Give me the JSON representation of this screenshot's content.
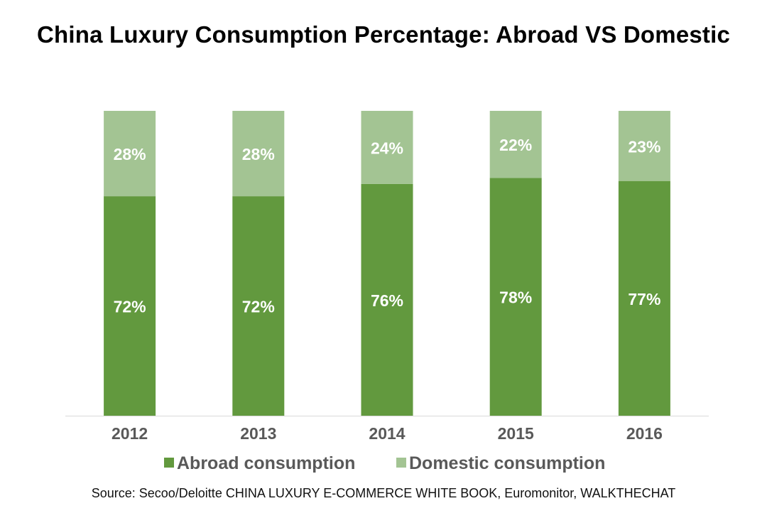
{
  "chart_data": {
    "type": "bar",
    "stacked": true,
    "title": "China Luxury Consumption Percentage: Abroad VS Domestic",
    "categories": [
      "2012",
      "2013",
      "2014",
      "2015",
      "2016"
    ],
    "series": [
      {
        "name": "Abroad consumption",
        "color": "#62993e",
        "values": [
          72,
          72,
          76,
          78,
          77
        ],
        "labels": [
          "72%",
          "72%",
          "76%",
          "78%",
          "77%"
        ]
      },
      {
        "name": "Domestic consumption",
        "color": "#a3c493",
        "values": [
          28,
          28,
          24,
          22,
          23
        ],
        "labels": [
          "28%",
          "28%",
          "24%",
          "22%",
          "23%"
        ]
      }
    ],
    "ylim": [
      0,
      100
    ],
    "xlabel": "",
    "ylabel": "",
    "grid": false,
    "legend": "bottom"
  },
  "source": "Source: Secoo/Deloitte CHINA LUXURY E-COMMERCE WHITE BOOK, Euromonitor, WALKTHECHAT",
  "colors": {
    "axis": "#d9d9d9",
    "tick_label": "#595959",
    "data_label": "#ffffff"
  }
}
